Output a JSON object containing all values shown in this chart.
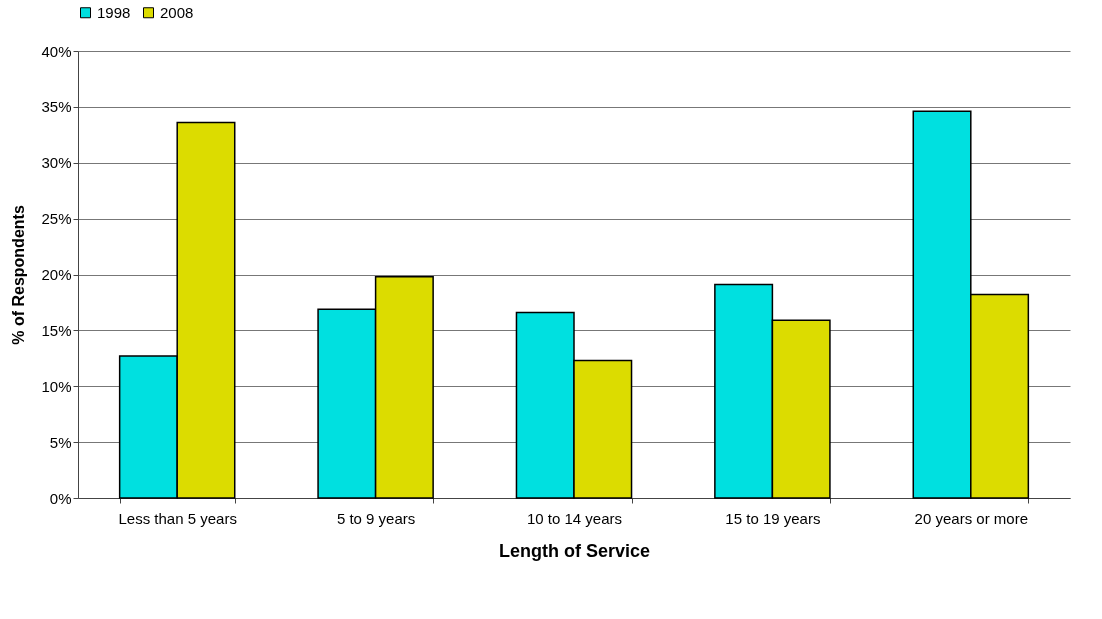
{
  "chart_data": {
    "type": "bar",
    "xlabel": "Length of Service",
    "ylabel": "% of Respondents",
    "categories": [
      "Less than 5 years",
      "5 to 9 years",
      "10 to 14 years",
      "15 to 19 years",
      "20 years or more"
    ],
    "series": [
      {
        "name": "1998",
        "color": "#00e0e0",
        "values": [
          12.7,
          16.9,
          16.6,
          19.1,
          34.6
        ]
      },
      {
        "name": "2008",
        "color": "#dcdc00",
        "values": [
          33.6,
          19.8,
          12.3,
          15.9,
          18.2
        ]
      }
    ],
    "ylim": [
      0,
      40
    ],
    "yticks": [
      {
        "value": 0,
        "label": "0%"
      },
      {
        "value": 5,
        "label": "5%"
      },
      {
        "value": 10,
        "label": "10%"
      },
      {
        "value": 15,
        "label": "15%"
      },
      {
        "value": 20,
        "label": "20%"
      },
      {
        "value": 25,
        "label": "25%"
      },
      {
        "value": 30,
        "label": "30%"
      },
      {
        "value": 35,
        "label": "35%"
      },
      {
        "value": 40,
        "label": "40%"
      }
    ],
    "grid": "y",
    "legend": "top"
  }
}
